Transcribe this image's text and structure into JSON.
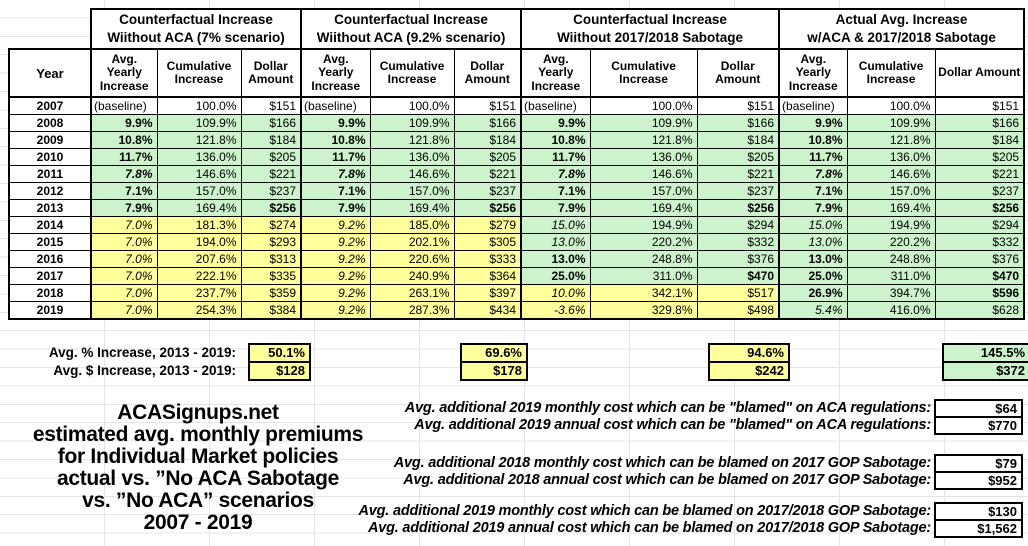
{
  "colors": {
    "green": "#cdf3cd",
    "yellow": "#ffff9c"
  },
  "chart_data": {
    "type": "table",
    "title": "ACASignups.net estimated avg. monthly premiums for Individual Market policies, actual vs. ”No ACA Sabotage vs. ”No ACA” scenarios, 2007 - 2019",
    "year_header": "Year",
    "groups": [
      {
        "lines": [
          "Counterfactual Increase",
          "Wiithout ACA (7% scenario)"
        ]
      },
      {
        "lines": [
          "Counterfactual Increase",
          "Wiithout ACA (9.2% scenario)"
        ]
      },
      {
        "lines": [
          "Counterfactual Increase",
          "Wiithout 2017/2018 Sabotage"
        ]
      },
      {
        "lines": [
          "Actual Avg. Increase",
          "w/ACA & 2017/2018 Sabotage"
        ]
      }
    ],
    "columns": [
      "Avg. Yearly Increase",
      "Cumulative Increase",
      "Dollar Amount"
    ],
    "rows": [
      {
        "year": "2007",
        "cells": [
          [
            "(baseline)",
            "w",
            ""
          ],
          [
            "100.0%",
            "w",
            ""
          ],
          [
            "$151",
            "w",
            ""
          ],
          [
            "(baseline)",
            "w",
            ""
          ],
          [
            "100.0%",
            "w",
            ""
          ],
          [
            "$151",
            "w",
            ""
          ],
          [
            "(baseline)",
            "w",
            ""
          ],
          [
            "100.0%",
            "w",
            ""
          ],
          [
            "$151",
            "w",
            ""
          ],
          [
            "(baseline)",
            "w",
            ""
          ],
          [
            "100.0%",
            "w",
            ""
          ],
          [
            "$151",
            "w",
            ""
          ]
        ]
      },
      {
        "year": "2008",
        "cells": [
          [
            "9.9%",
            "g",
            "b"
          ],
          [
            "109.9%",
            "g",
            ""
          ],
          [
            "$166",
            "g",
            ""
          ],
          [
            "9.9%",
            "g",
            "b"
          ],
          [
            "109.9%",
            "g",
            ""
          ],
          [
            "$166",
            "g",
            ""
          ],
          [
            "9.9%",
            "g",
            "b"
          ],
          [
            "109.9%",
            "g",
            ""
          ],
          [
            "$166",
            "g",
            ""
          ],
          [
            "9.9%",
            "g",
            "b"
          ],
          [
            "109.9%",
            "g",
            ""
          ],
          [
            "$166",
            "g",
            ""
          ]
        ]
      },
      {
        "year": "2009",
        "cells": [
          [
            "10.8%",
            "g",
            "b"
          ],
          [
            "121.8%",
            "g",
            ""
          ],
          [
            "$184",
            "g",
            ""
          ],
          [
            "10.8%",
            "g",
            "b"
          ],
          [
            "121.8%",
            "g",
            ""
          ],
          [
            "$184",
            "g",
            ""
          ],
          [
            "10.8%",
            "g",
            "b"
          ],
          [
            "121.8%",
            "g",
            ""
          ],
          [
            "$184",
            "g",
            ""
          ],
          [
            "10.8%",
            "g",
            "b"
          ],
          [
            "121.8%",
            "g",
            ""
          ],
          [
            "$184",
            "g",
            ""
          ]
        ]
      },
      {
        "year": "2010",
        "cells": [
          [
            "11.7%",
            "g",
            "b"
          ],
          [
            "136.0%",
            "g",
            ""
          ],
          [
            "$205",
            "g",
            ""
          ],
          [
            "11.7%",
            "g",
            "b"
          ],
          [
            "136.0%",
            "g",
            ""
          ],
          [
            "$205",
            "g",
            ""
          ],
          [
            "11.7%",
            "g",
            "b"
          ],
          [
            "136.0%",
            "g",
            ""
          ],
          [
            "$205",
            "g",
            ""
          ],
          [
            "11.7%",
            "g",
            "b"
          ],
          [
            "136.0%",
            "g",
            ""
          ],
          [
            "$205",
            "g",
            ""
          ]
        ]
      },
      {
        "year": "2011",
        "cells": [
          [
            "7.8%",
            "g",
            "bi"
          ],
          [
            "146.6%",
            "g",
            ""
          ],
          [
            "$221",
            "g",
            ""
          ],
          [
            "7.8%",
            "g",
            "bi"
          ],
          [
            "146.6%",
            "g",
            ""
          ],
          [
            "$221",
            "g",
            ""
          ],
          [
            "7.8%",
            "g",
            "bi"
          ],
          [
            "146.6%",
            "g",
            ""
          ],
          [
            "$221",
            "g",
            ""
          ],
          [
            "7.8%",
            "g",
            "bi"
          ],
          [
            "146.6%",
            "g",
            ""
          ],
          [
            "$221",
            "g",
            ""
          ]
        ]
      },
      {
        "year": "2012",
        "cells": [
          [
            "7.1%",
            "g",
            "b"
          ],
          [
            "157.0%",
            "g",
            ""
          ],
          [
            "$237",
            "g",
            ""
          ],
          [
            "7.1%",
            "g",
            "b"
          ],
          [
            "157.0%",
            "g",
            ""
          ],
          [
            "$237",
            "g",
            ""
          ],
          [
            "7.1%",
            "g",
            "b"
          ],
          [
            "157.0%",
            "g",
            ""
          ],
          [
            "$237",
            "g",
            ""
          ],
          [
            "7.1%",
            "g",
            "b"
          ],
          [
            "157.0%",
            "g",
            ""
          ],
          [
            "$237",
            "g",
            ""
          ]
        ]
      },
      {
        "year": "2013",
        "cells": [
          [
            "7.9%",
            "g",
            "b"
          ],
          [
            "169.4%",
            "g",
            ""
          ],
          [
            "$256",
            "g",
            "b"
          ],
          [
            "7.9%",
            "g",
            "b"
          ],
          [
            "169.4%",
            "g",
            ""
          ],
          [
            "$256",
            "g",
            "b"
          ],
          [
            "7.9%",
            "g",
            "b"
          ],
          [
            "169.4%",
            "g",
            ""
          ],
          [
            "$256",
            "g",
            "b"
          ],
          [
            "7.9%",
            "g",
            "b"
          ],
          [
            "169.4%",
            "g",
            ""
          ],
          [
            "$256",
            "g",
            "b"
          ]
        ]
      },
      {
        "year": "2014",
        "cells": [
          [
            "7.0%",
            "y",
            "i"
          ],
          [
            "181.3%",
            "y",
            ""
          ],
          [
            "$274",
            "y",
            ""
          ],
          [
            "9.2%",
            "y",
            "i"
          ],
          [
            "185.0%",
            "y",
            ""
          ],
          [
            "$279",
            "y",
            ""
          ],
          [
            "15.0%",
            "g",
            "i"
          ],
          [
            "194.9%",
            "g",
            ""
          ],
          [
            "$294",
            "g",
            ""
          ],
          [
            "15.0%",
            "g",
            "i"
          ],
          [
            "194.9%",
            "g",
            ""
          ],
          [
            "$294",
            "g",
            ""
          ]
        ]
      },
      {
        "year": "2015",
        "cells": [
          [
            "7.0%",
            "y",
            "i"
          ],
          [
            "194.0%",
            "y",
            ""
          ],
          [
            "$293",
            "y",
            ""
          ],
          [
            "9.2%",
            "y",
            "i"
          ],
          [
            "202.1%",
            "y",
            ""
          ],
          [
            "$305",
            "y",
            ""
          ],
          [
            "13.0%",
            "g",
            "i"
          ],
          [
            "220.2%",
            "g",
            ""
          ],
          [
            "$332",
            "g",
            ""
          ],
          [
            "13.0%",
            "g",
            "i"
          ],
          [
            "220.2%",
            "g",
            ""
          ],
          [
            "$332",
            "g",
            ""
          ]
        ]
      },
      {
        "year": "2016",
        "cells": [
          [
            "7.0%",
            "y",
            "i"
          ],
          [
            "207.6%",
            "y",
            ""
          ],
          [
            "$313",
            "y",
            ""
          ],
          [
            "9.2%",
            "y",
            "i"
          ],
          [
            "220.6%",
            "y",
            ""
          ],
          [
            "$333",
            "y",
            ""
          ],
          [
            "13.0%",
            "g",
            "b"
          ],
          [
            "248.8%",
            "g",
            ""
          ],
          [
            "$376",
            "g",
            ""
          ],
          [
            "13.0%",
            "g",
            "b"
          ],
          [
            "248.8%",
            "g",
            ""
          ],
          [
            "$376",
            "g",
            ""
          ]
        ]
      },
      {
        "year": "2017",
        "cells": [
          [
            "7.0%",
            "y",
            "i"
          ],
          [
            "222.1%",
            "y",
            ""
          ],
          [
            "$335",
            "y",
            ""
          ],
          [
            "9.2%",
            "y",
            "i"
          ],
          [
            "240.9%",
            "y",
            ""
          ],
          [
            "$364",
            "y",
            ""
          ],
          [
            "25.0%",
            "g",
            "b"
          ],
          [
            "311.0%",
            "g",
            ""
          ],
          [
            "$470",
            "g",
            "b"
          ],
          [
            "25.0%",
            "g",
            "b"
          ],
          [
            "311.0%",
            "g",
            ""
          ],
          [
            "$470",
            "g",
            "b"
          ]
        ]
      },
      {
        "year": "2018",
        "cells": [
          [
            "7.0%",
            "y",
            "i"
          ],
          [
            "237.7%",
            "y",
            ""
          ],
          [
            "$359",
            "y",
            ""
          ],
          [
            "9.2%",
            "y",
            "i"
          ],
          [
            "263.1%",
            "y",
            ""
          ],
          [
            "$397",
            "y",
            ""
          ],
          [
            "10.0%",
            "y",
            "i"
          ],
          [
            "342.1%",
            "y",
            ""
          ],
          [
            "$517",
            "y",
            ""
          ],
          [
            "26.9%",
            "g",
            "b"
          ],
          [
            "394.7%",
            "g",
            ""
          ],
          [
            "$596",
            "g",
            "b"
          ]
        ]
      },
      {
        "year": "2019",
        "cells": [
          [
            "7.0%",
            "y",
            "i"
          ],
          [
            "254.3%",
            "y",
            ""
          ],
          [
            "$384",
            "y",
            ""
          ],
          [
            "9.2%",
            "y",
            "i"
          ],
          [
            "287.3%",
            "y",
            ""
          ],
          [
            "$434",
            "y",
            ""
          ],
          [
            "-3.6%",
            "y",
            "i"
          ],
          [
            "329.8%",
            "y",
            ""
          ],
          [
            "$498",
            "y",
            ""
          ],
          [
            "5.4%",
            "g",
            "i"
          ],
          [
            "416.0%",
            "g",
            ""
          ],
          [
            "$628",
            "g",
            ""
          ]
        ]
      }
    ]
  },
  "summary": {
    "pct_label": "Avg. % Increase, 2013 - 2019:",
    "usd_label": "Avg. $ Increase, 2013 - 2019:",
    "pct_values": [
      "50.1%",
      "69.6%",
      "94.6%",
      "145.5%"
    ],
    "usd_values": [
      "$128",
      "$178",
      "$242",
      "$372"
    ]
  },
  "footer": {
    "title_lines": [
      "ACASignups.net",
      "estimated avg. monthly premiums",
      "for Individual Market policies",
      "actual vs. ”No ACA Sabotage",
      "vs. ”No ACA” scenarios",
      "2007 - 2019"
    ],
    "notes": [
      {
        "label": "Avg. additional 2019 monthly cost which can be \"blamed\" on ACA regulations:",
        "value": "$64"
      },
      {
        "label": "Avg. additional 2019 annual cost which can be \"blamed\" on ACA regulations:",
        "value": "$770"
      },
      {
        "label": "Avg. additional 2018 monthly cost which can be blamed on 2017 GOP Sabotage:",
        "value": "$79"
      },
      {
        "label": "Avg. additional 2018 annual cost which can be blamed on 2017 GOP Sabotage:",
        "value": "$952"
      },
      {
        "label": "Avg. additional 2019 monthly cost which can be blamed on 2017/2018 GOP Sabotage:",
        "value": "$130"
      },
      {
        "label": "Avg. additional 2019 annual cost which can be blamed on 2017/2018 GOP Sabotage:",
        "value": "$1,562"
      }
    ]
  }
}
